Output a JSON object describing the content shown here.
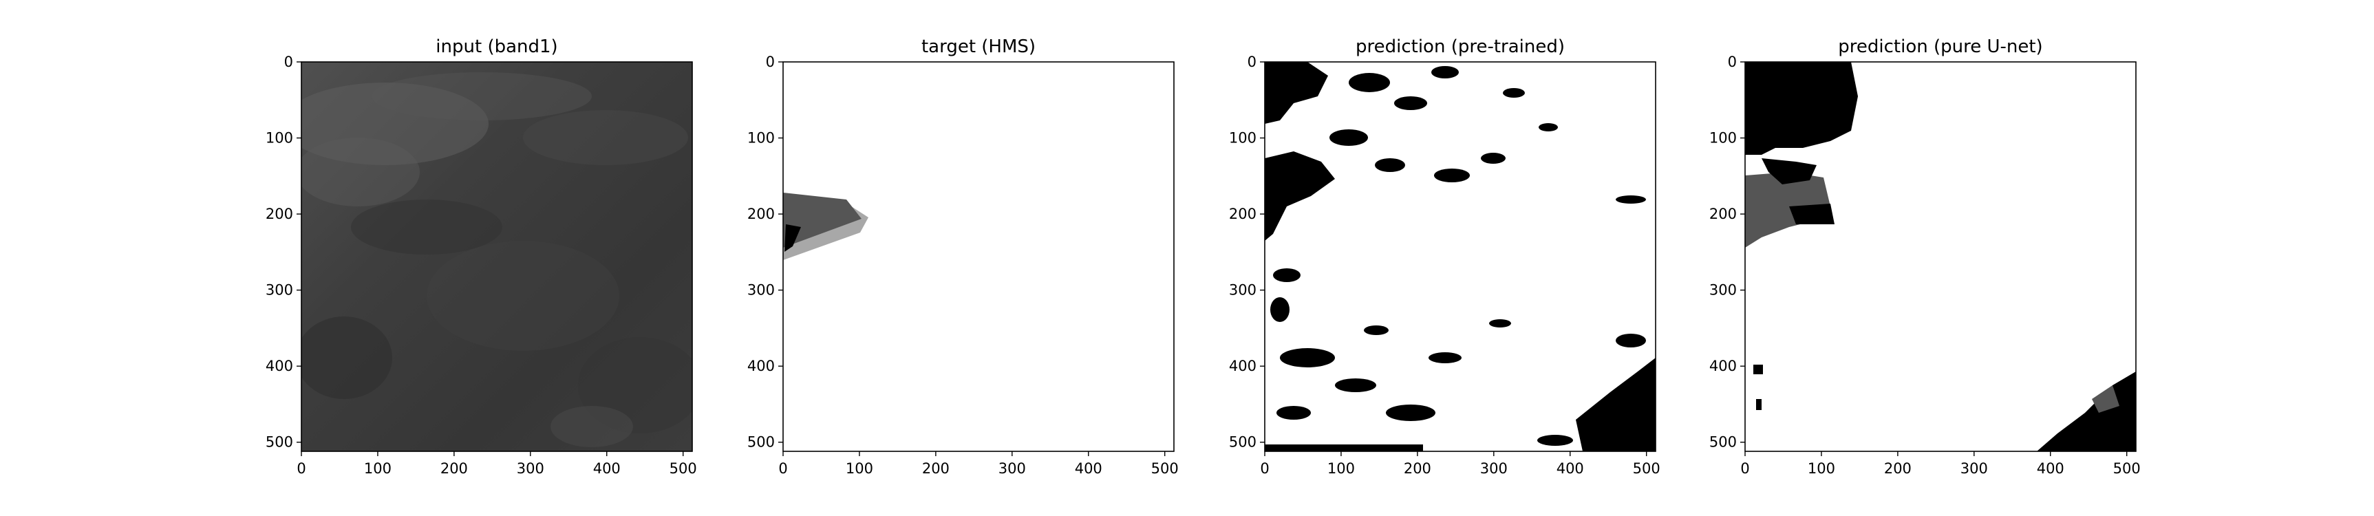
{
  "chart_data": [
    {
      "type": "heatmap",
      "title": "input (band1)",
      "xlim": [
        0,
        512
      ],
      "ylim": [
        512,
        0
      ],
      "x_ticks": [
        "0",
        "100",
        "200",
        "300",
        "400",
        "500"
      ],
      "y_ticks": [
        "0",
        "100",
        "200",
        "300",
        "400",
        "500"
      ],
      "colormap": "grayscale",
      "content": "satellite band-1 grayscale image, mostly dark gray with lighter cloud texture in the upper left"
    },
    {
      "type": "heatmap",
      "title": "target (HMS)",
      "xlim": [
        0,
        512
      ],
      "ylim": [
        512,
        0
      ],
      "x_ticks": [
        "0",
        "100",
        "200",
        "300",
        "400",
        "500"
      ],
      "y_ticks": [
        "0",
        "100",
        "200",
        "300",
        "400",
        "500"
      ],
      "colormap": "grayscale",
      "content": "white background with a small smoke polygon on the left edge between rows ~165 and ~255 (light, medium and dark gray classes)"
    },
    {
      "type": "heatmap",
      "title": "prediction (pre-trained)",
      "xlim": [
        0,
        512
      ],
      "ylim": [
        512,
        0
      ],
      "x_ticks": [
        "0",
        "100",
        "200",
        "300",
        "400",
        "500"
      ],
      "y_ticks": [
        "0",
        "100",
        "200",
        "300",
        "400",
        "500"
      ],
      "colormap": "grayscale",
      "content": "white background with scattered black blobs concentrated along the top, left edge, lower left and bottom right"
    },
    {
      "type": "heatmap",
      "title": "prediction (pure U-net)",
      "xlim": [
        0,
        512
      ],
      "ylim": [
        512,
        0
      ],
      "x_ticks": [
        "0",
        "100",
        "200",
        "300",
        "400",
        "500"
      ],
      "y_ticks": [
        "0",
        "100",
        "200",
        "300",
        "400",
        "500"
      ],
      "colormap": "grayscale",
      "content": "white background with a large black block in the upper left, gray/black region near rows 120-250 at the left edge, and a black/gray region in the bottom right corner"
    }
  ],
  "colors": {
    "background": "#ffffff",
    "axis": "#000000",
    "black_class": "#000000",
    "dark_gray_class": "#555555",
    "light_gray_class": "#a8a8a8",
    "input_base": "#3a3a3a"
  }
}
